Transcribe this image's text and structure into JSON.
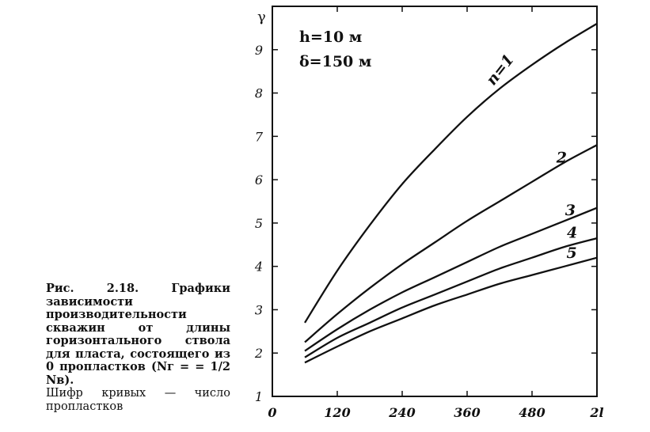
{
  "caption": {
    "bold": "Рис. 2.18. Графики зависимости производительности скважин от длины горизонтального ствола для пласта, состоящего из 0 пропластков (Nг = = 1/2 Nв).",
    "note": "Шифр кривых — число пропластков"
  },
  "chart_data": {
    "type": "line",
    "ylabel": "γ",
    "xlabel": "2l",
    "xlim": [
      0,
      600
    ],
    "ylim": [
      1,
      10
    ],
    "x_ticks": [
      "0",
      "120",
      "240",
      "360",
      "480",
      "2l"
    ],
    "y_ticks": [
      "1",
      "2",
      "3",
      "4",
      "5",
      "6",
      "7",
      "8",
      "9"
    ],
    "annotations": [
      "h=10 м",
      "δ=150 м"
    ],
    "grid": false,
    "series": [
      {
        "name": "n=1",
        "x": [
          60,
          120,
          180,
          240,
          300,
          360,
          420,
          480,
          540,
          600
        ],
        "values": [
          2.7,
          3.9,
          4.95,
          5.9,
          6.7,
          7.45,
          8.1,
          8.65,
          9.15,
          9.6
        ]
      },
      {
        "name": "2",
        "x": [
          60,
          120,
          180,
          240,
          300,
          360,
          420,
          480,
          540,
          600
        ],
        "values": [
          2.25,
          2.9,
          3.5,
          4.05,
          4.55,
          5.05,
          5.5,
          5.95,
          6.4,
          6.8
        ]
      },
      {
        "name": "3",
        "x": [
          60,
          120,
          180,
          240,
          300,
          360,
          420,
          480,
          540,
          600
        ],
        "values": [
          2.05,
          2.55,
          3.0,
          3.4,
          3.75,
          4.1,
          4.45,
          4.75,
          5.05,
          5.35
        ]
      },
      {
        "name": "4",
        "x": [
          60,
          120,
          180,
          240,
          300,
          360,
          420,
          480,
          540,
          600
        ],
        "values": [
          1.9,
          2.35,
          2.7,
          3.05,
          3.35,
          3.65,
          3.95,
          4.2,
          4.45,
          4.65
        ]
      },
      {
        "name": "5",
        "x": [
          60,
          120,
          180,
          240,
          300,
          360,
          420,
          480,
          540,
          600
        ],
        "values": [
          1.78,
          2.15,
          2.5,
          2.8,
          3.1,
          3.35,
          3.6,
          3.8,
          4.0,
          4.2
        ]
      }
    ]
  }
}
